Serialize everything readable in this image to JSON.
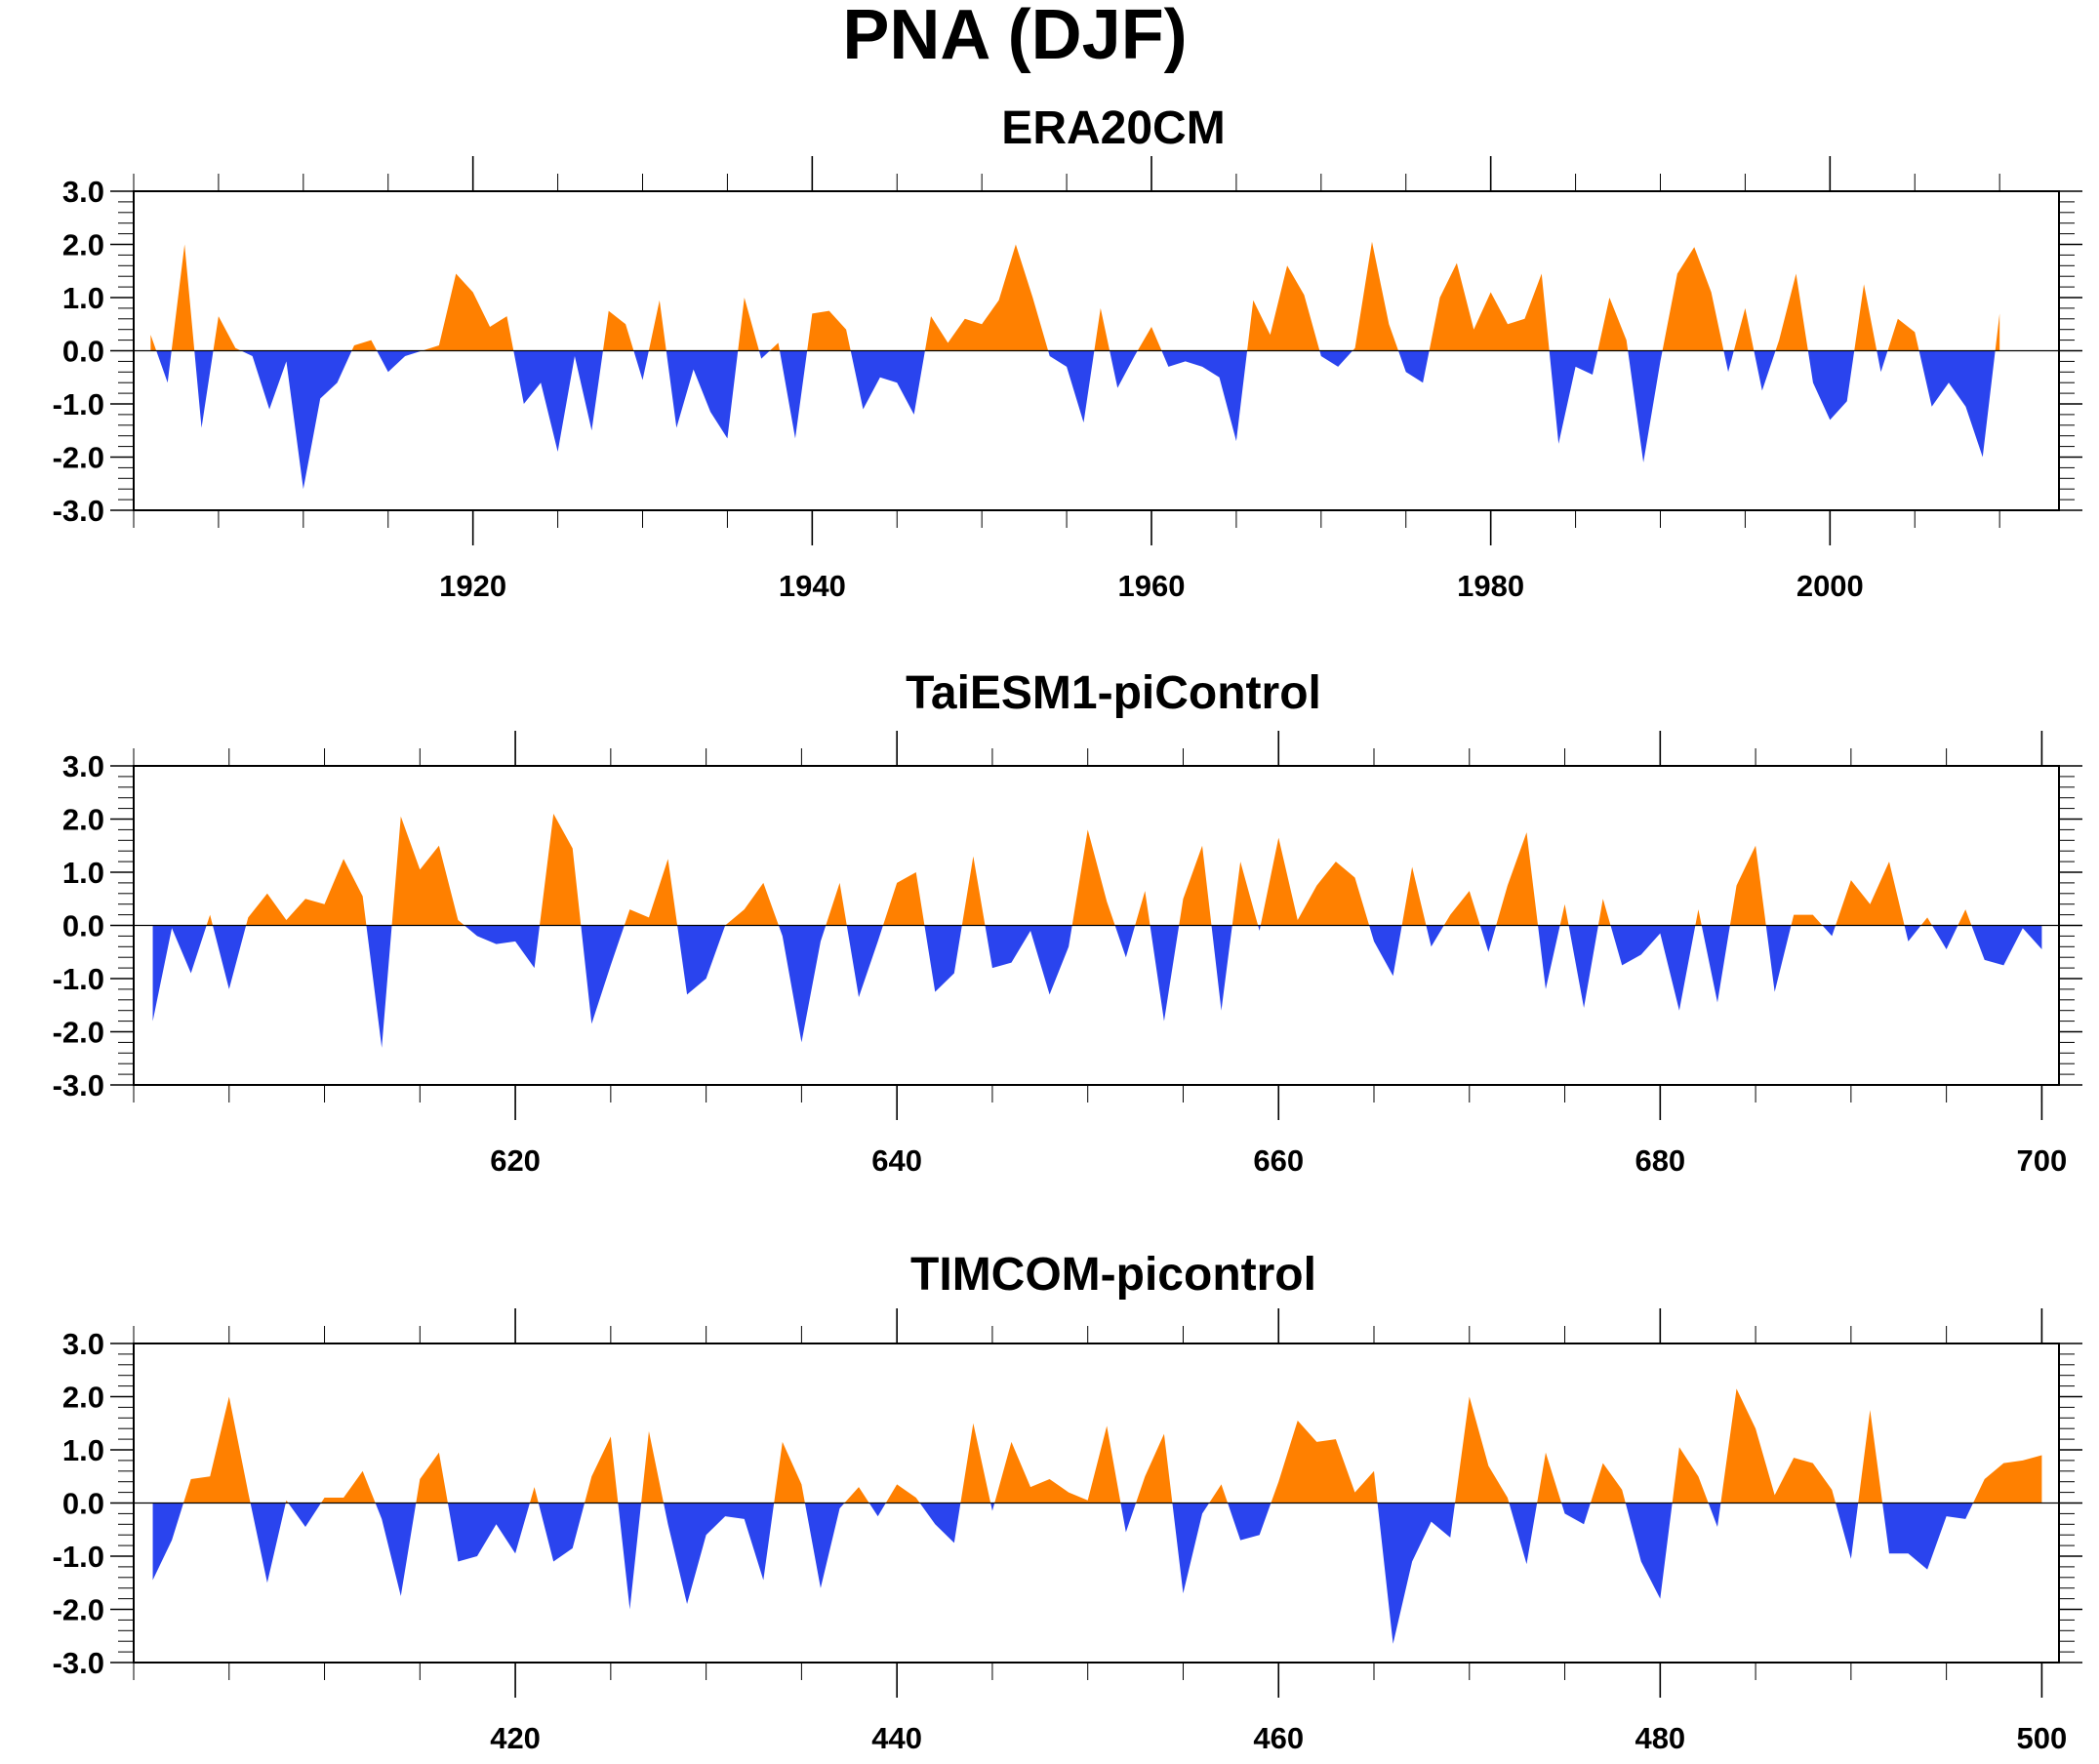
{
  "figure_title": "PNA (DJF)",
  "colors": {
    "positive": "#ff8000",
    "negative": "#2a44ee",
    "axis": "#000000",
    "background": "#ffffff"
  },
  "chart_data": [
    {
      "type": "area",
      "title": "ERA20CM",
      "xlabel": "",
      "ylabel": "",
      "ylim": [
        -3.0,
        3.0
      ],
      "xlim": [
        1900.0,
        2013.5
      ],
      "x_ticks": [
        1920,
        1940,
        1960,
        1980,
        2000
      ],
      "x_tick_labels": [
        "1920",
        "1940",
        "1960",
        "1980",
        "2000"
      ],
      "y_ticks": [
        -3.0,
        -2.0,
        -1.0,
        0.0,
        1.0,
        2.0,
        3.0
      ],
      "y_tick_labels": [
        "-3.0",
        "-2.0",
        "-1.0",
        "0.0",
        "1.0",
        "2.0",
        "3.0"
      ],
      "grid": false,
      "fill_above_zero": "#ff8000",
      "fill_below_zero": "#2a44ee",
      "x": [
        1901,
        1902,
        1903,
        1904,
        1905,
        1906,
        1907,
        1908,
        1909,
        1910,
        1911,
        1912,
        1913,
        1914,
        1915,
        1916,
        1917,
        1918,
        1919,
        1920,
        1921,
        1922,
        1923,
        1924,
        1925,
        1926,
        1927,
        1928,
        1929,
        1930,
        1931,
        1932,
        1933,
        1934,
        1935,
        1936,
        1937,
        1938,
        1939,
        1940,
        1941,
        1942,
        1943,
        1944,
        1945,
        1946,
        1947,
        1948,
        1949,
        1950,
        1951,
        1952,
        1953,
        1954,
        1955,
        1956,
        1957,
        1958,
        1959,
        1960,
        1961,
        1962,
        1963,
        1964,
        1965,
        1966,
        1967,
        1968,
        1969,
        1970,
        1971,
        1972,
        1973,
        1974,
        1975,
        1976,
        1977,
        1978,
        1979,
        1980,
        1981,
        1982,
        1983,
        1984,
        1985,
        1986,
        1987,
        1988,
        1989,
        1990,
        1991,
        1992,
        1993,
        1994,
        1995,
        1996,
        1997,
        1998,
        1999,
        2000,
        2001,
        2002,
        2003,
        2004,
        2005,
        2006,
        2007,
        2008,
        2009,
        2010
      ],
      "values": [
        0.3,
        -0.6,
        2.0,
        -1.45,
        0.65,
        0.05,
        -0.1,
        -1.1,
        -0.2,
        -2.6,
        -0.9,
        -0.6,
        0.1,
        0.2,
        -0.4,
        -0.1,
        0.0,
        0.1,
        1.45,
        1.1,
        0.45,
        0.65,
        -1.0,
        -0.6,
        -1.9,
        -0.1,
        -1.5,
        0.75,
        0.5,
        -0.55,
        0.95,
        -1.45,
        -0.35,
        -1.15,
        -1.65,
        1.0,
        -0.15,
        0.15,
        -1.65,
        0.7,
        0.75,
        0.4,
        -1.1,
        -0.5,
        -0.6,
        -1.2,
        0.65,
        0.15,
        0.6,
        0.5,
        0.95,
        2.0,
        1.0,
        -0.1,
        -0.3,
        -1.35,
        0.8,
        -0.7,
        -0.1,
        0.45,
        -0.3,
        -0.2,
        -0.3,
        -0.5,
        -1.7,
        0.95,
        0.3,
        1.6,
        1.05,
        -0.1,
        -0.3,
        0.05,
        2.05,
        0.5,
        -0.4,
        -0.6,
        1.0,
        1.65,
        0.4,
        1.1,
        0.5,
        0.6,
        1.45,
        -1.75,
        -0.3,
        -0.45,
        1.0,
        0.2,
        -2.1,
        -0.2,
        1.45,
        1.95,
        1.1,
        -0.4,
        0.8,
        -0.75,
        0.2,
        1.45,
        -0.6,
        -1.3,
        -0.95,
        1.25,
        -0.4,
        0.6,
        0.35,
        -1.05,
        -0.6,
        -1.05,
        -2.0,
        0.7
      ]
    },
    {
      "type": "area",
      "title": "TaiESM1-piControl",
      "xlabel": "",
      "ylabel": "",
      "ylim": [
        -3.0,
        3.0
      ],
      "xlim": [
        600.0,
        700.9
      ],
      "x_ticks": [
        620,
        640,
        660,
        680,
        700
      ],
      "x_tick_labels": [
        "620",
        "640",
        "660",
        "680",
        "700"
      ],
      "y_ticks": [
        -3.0,
        -2.0,
        -1.0,
        0.0,
        1.0,
        2.0,
        3.0
      ],
      "y_tick_labels": [
        "-3.0",
        "-2.0",
        "-1.0",
        "0.0",
        "1.0",
        "2.0",
        "3.0"
      ],
      "grid": false,
      "fill_above_zero": "#ff8000",
      "fill_below_zero": "#2a44ee",
      "x": [
        601,
        602,
        603,
        604,
        605,
        606,
        607,
        608,
        609,
        610,
        611,
        612,
        613,
        614,
        615,
        616,
        617,
        618,
        619,
        620,
        621,
        622,
        623,
        624,
        625,
        626,
        627,
        628,
        629,
        630,
        631,
        632,
        633,
        634,
        635,
        636,
        637,
        638,
        639,
        640,
        641,
        642,
        643,
        644,
        645,
        646,
        647,
        648,
        649,
        650,
        651,
        652,
        653,
        654,
        655,
        656,
        657,
        658,
        659,
        660,
        661,
        662,
        663,
        664,
        665,
        666,
        667,
        668,
        669,
        670,
        671,
        672,
        673,
        674,
        675,
        676,
        677,
        678,
        679,
        680,
        681,
        682,
        683,
        684,
        685,
        686,
        687,
        688,
        689,
        690,
        691,
        692,
        693,
        694,
        695,
        696,
        697,
        698,
        699,
        700
      ],
      "values": [
        -1.8,
        -0.05,
        -0.9,
        0.2,
        -1.2,
        0.15,
        0.6,
        0.1,
        0.5,
        0.4,
        1.25,
        0.55,
        -2.3,
        2.05,
        1.05,
        1.5,
        0.1,
        -0.2,
        -0.35,
        -0.3,
        -0.8,
        2.1,
        1.45,
        -1.85,
        -0.75,
        0.3,
        0.15,
        1.25,
        -1.3,
        -1.0,
        0.0,
        0.3,
        0.8,
        -0.2,
        -2.2,
        -0.3,
        0.8,
        -1.35,
        -0.3,
        0.8,
        1.0,
        -1.25,
        -0.9,
        1.3,
        -0.8,
        -0.7,
        -0.1,
        -1.3,
        -0.4,
        1.8,
        0.45,
        -0.6,
        0.65,
        -1.8,
        0.5,
        1.5,
        -1.6,
        1.2,
        -0.1,
        1.65,
        0.1,
        0.75,
        1.2,
        0.9,
        -0.3,
        -0.95,
        1.1,
        -0.4,
        0.2,
        0.65,
        -0.5,
        0.75,
        1.75,
        -1.2,
        0.4,
        -1.55,
        0.5,
        -0.75,
        -0.55,
        -0.15,
        -1.6,
        0.3,
        -1.45,
        0.75,
        1.5,
        -1.25,
        0.2,
        0.2,
        -0.2,
        0.85,
        0.4,
        1.2,
        -0.3,
        0.15,
        -0.45,
        0.3,
        -0.65,
        -0.75,
        -0.05,
        -0.45
      ]
    },
    {
      "type": "area",
      "title": "TIMCOM-picontrol",
      "xlabel": "",
      "ylabel": "",
      "ylim": [
        -3.0,
        3.0
      ],
      "xlim": [
        400.0,
        500.9
      ],
      "x_ticks": [
        420,
        440,
        460,
        480,
        500
      ],
      "x_tick_labels": [
        "420",
        "440",
        "460",
        "480",
        "500"
      ],
      "y_ticks": [
        -3.0,
        -2.0,
        -1.0,
        0.0,
        1.0,
        2.0,
        3.0
      ],
      "y_tick_labels": [
        "-3.0",
        "-2.0",
        "-1.0",
        "0.0",
        "1.0",
        "2.0",
        "3.0"
      ],
      "grid": false,
      "fill_above_zero": "#ff8000",
      "fill_below_zero": "#2a44ee",
      "x": [
        401,
        402,
        403,
        404,
        405,
        406,
        407,
        408,
        409,
        410,
        411,
        412,
        413,
        414,
        415,
        416,
        417,
        418,
        419,
        420,
        421,
        422,
        423,
        424,
        425,
        426,
        427,
        428,
        429,
        430,
        431,
        432,
        433,
        434,
        435,
        436,
        437,
        438,
        439,
        440,
        441,
        442,
        443,
        444,
        445,
        446,
        447,
        448,
        449,
        450,
        451,
        452,
        453,
        454,
        455,
        456,
        457,
        458,
        459,
        460,
        461,
        462,
        463,
        464,
        465,
        466,
        467,
        468,
        469,
        470,
        471,
        472,
        473,
        474,
        475,
        476,
        477,
        478,
        479,
        480,
        481,
        482,
        483,
        484,
        485,
        486,
        487,
        488,
        489,
        490,
        491,
        492,
        493,
        494,
        495,
        496,
        497,
        498,
        499,
        500
      ],
      "values": [
        -1.45,
        -0.7,
        0.45,
        0.5,
        2.0,
        0.2,
        -1.5,
        0.05,
        -0.45,
        0.1,
        0.1,
        0.6,
        -0.3,
        -1.75,
        0.45,
        0.95,
        -1.1,
        -1.0,
        -0.4,
        -0.95,
        0.3,
        -1.1,
        -0.85,
        0.5,
        1.25,
        -2.0,
        1.35,
        -0.4,
        -1.9,
        -0.6,
        -0.25,
        -0.3,
        -1.45,
        1.15,
        0.35,
        -1.6,
        -0.1,
        0.3,
        -0.25,
        0.35,
        0.1,
        -0.4,
        -0.75,
        1.5,
        -0.15,
        1.15,
        0.3,
        0.45,
        0.2,
        0.05,
        1.45,
        -0.55,
        0.5,
        1.3,
        -1.7,
        -0.2,
        0.35,
        -0.7,
        -0.6,
        0.4,
        1.55,
        1.15,
        1.2,
        0.2,
        0.6,
        -2.65,
        -1.1,
        -0.35,
        -0.65,
        2.0,
        0.7,
        0.1,
        -1.15,
        0.95,
        -0.2,
        -0.4,
        0.75,
        0.25,
        -1.1,
        -1.8,
        1.05,
        0.5,
        -0.45,
        2.15,
        1.4,
        0.15,
        0.85,
        0.75,
        0.25,
        -1.05,
        1.75,
        -0.95,
        -0.95,
        -1.25,
        -0.25,
        -0.3,
        0.45,
        0.75,
        0.8,
        0.9
      ]
    }
  ]
}
